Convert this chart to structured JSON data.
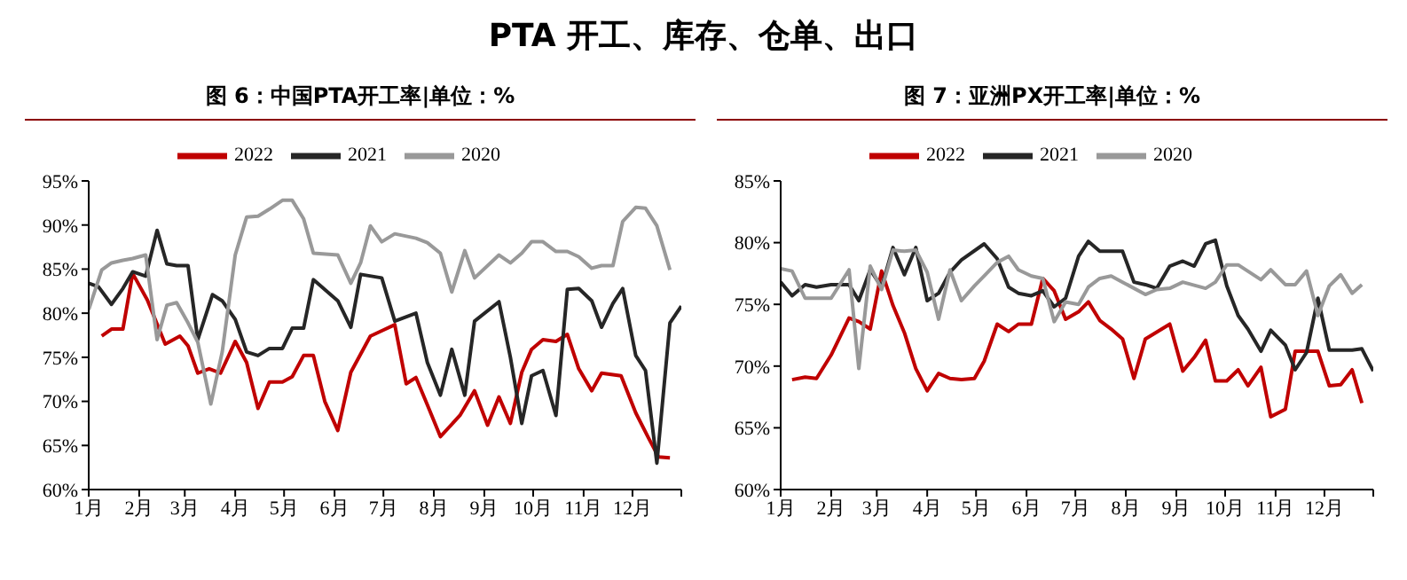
{
  "chart_data": [
    {
      "type": "line",
      "title": "PTA 开工、库存、仓单、出口",
      "subtitle": "图 6：中国PTA开工率|单位：%",
      "legend": "top",
      "grid": false,
      "xlim": [
        "--01-01",
        "--12-31"
      ],
      "xticks": [
        {
          "value": "--01-01",
          "label": "1月"
        },
        {
          "value": "--02-01",
          "label": "2月"
        },
        {
          "value": "--03-01",
          "label": "3月"
        },
        {
          "value": "--04-01",
          "label": "4月"
        },
        {
          "value": "--05-01",
          "label": "5月"
        },
        {
          "value": "--06-01",
          "label": "6月"
        },
        {
          "value": "--07-01",
          "label": "7月"
        },
        {
          "value": "--08-01",
          "label": "8月"
        },
        {
          "value": "--09-01",
          "label": "9月"
        },
        {
          "value": "--10-01",
          "label": "10月"
        },
        {
          "value": "--11-01",
          "label": "11月"
        },
        {
          "value": "--12-01",
          "label": "12月"
        },
        {
          "value": "--12-31",
          "label": null
        }
      ],
      "ylim": [
        60,
        95
      ],
      "yticks": [
        {
          "value": 60,
          "label": "60%"
        },
        {
          "value": 65,
          "label": "65%"
        },
        {
          "value": 70,
          "label": "70%"
        },
        {
          "value": 75,
          "label": "75%"
        },
        {
          "value": 80,
          "label": "80%"
        },
        {
          "value": 85,
          "label": "85%"
        },
        {
          "value": 90,
          "label": "90%"
        },
        {
          "value": 95,
          "label": "95%"
        }
      ],
      "series": [
        {
          "name": "2022",
          "color": "#c00000",
          "x": [
            "--01-09",
            "--01-15",
            "--01-22",
            "--01-28",
            "--02-06",
            "--02-17",
            "--02-26",
            "--03-03",
            "--03-09",
            "--03-16",
            "--03-23",
            "--04-01",
            "--04-08",
            "--04-15",
            "--04-22",
            "--04-30",
            "--05-06",
            "--05-13",
            "--05-19",
            "--05-26",
            "--06-03",
            "--06-11",
            "--06-23",
            "--06-30",
            "--07-08",
            "--07-15",
            "--07-21",
            "--07-28",
            "--08-05",
            "--08-17",
            "--08-26",
            "--09-03",
            "--09-10",
            "--09-17",
            "--09-24",
            "--09-30",
            "--10-07",
            "--10-15",
            "--10-22",
            "--10-29",
            "--11-06",
            "--11-12",
            "--11-24",
            "--12-03",
            "--12-11",
            "--12-17",
            "--12-24"
          ],
          "values": [
            77.4,
            78.2,
            78.2,
            84.5,
            81.5,
            76.5,
            77.4,
            76.3,
            73.2,
            73.7,
            73.2,
            76.8,
            74.4,
            69.2,
            72.2,
            72.2,
            72.8,
            75.2,
            75.2,
            70,
            66.7,
            73.3,
            77.4,
            78,
            78.7,
            72,
            72.7,
            69.6,
            66,
            68.4,
            71.2,
            67.3,
            70.5,
            67.5,
            73.3,
            75.9,
            77,
            76.8,
            77.6,
            73.7,
            71.2,
            73.2,
            72.9,
            68.7,
            65.8,
            63.7,
            63.6
          ]
        },
        {
          "name": "2021",
          "color": "#262626",
          "x": [
            "--01-01",
            "--01-07",
            "--01-15",
            "--01-22",
            "--01-28",
            "--02-05",
            "--02-12",
            "--02-18",
            "--02-24",
            "--03-03",
            "--03-09",
            "--03-18",
            "--03-24",
            "--04-01",
            "--04-08",
            "--04-15",
            "--04-22",
            "--04-30",
            "--05-06",
            "--05-13",
            "--05-19",
            "--06-03",
            "--06-11",
            "--06-17",
            "--06-30",
            "--07-08",
            "--07-21",
            "--07-28",
            "--08-05",
            "--08-12",
            "--08-20",
            "--08-26",
            "--09-10",
            "--09-17",
            "--09-24",
            "--09-30",
            "--10-07",
            "--10-15",
            "--10-22",
            "--10-29",
            "--11-06",
            "--11-12",
            "--11-19",
            "--11-25",
            "--12-03",
            "--12-09",
            "--12-16",
            "--12-24",
            "--12-31"
          ],
          "values": [
            83.4,
            83,
            81,
            82.8,
            84.7,
            84.2,
            89.4,
            85.6,
            85.4,
            85.4,
            77,
            82.1,
            81.4,
            79.3,
            75.6,
            75.2,
            76,
            76,
            78.3,
            78.3,
            83.8,
            81.4,
            78.4,
            84.4,
            84,
            79.1,
            80,
            74.4,
            70.7,
            75.9,
            70.7,
            79.1,
            81.3,
            75,
            67.5,
            72.9,
            73.5,
            68.4,
            82.7,
            82.8,
            81.4,
            78.4,
            81.1,
            82.8,
            75.2,
            73.5,
            63,
            78.9,
            80.8
          ]
        },
        {
          "name": "2020",
          "color": "#999999",
          "x": [
            "--01-01",
            "--01-09",
            "--01-15",
            "--01-22",
            "--01-28",
            "--02-05",
            "--02-12",
            "--02-18",
            "--02-24",
            "--03-03",
            "--03-09",
            "--03-17",
            "--03-24",
            "--04-01",
            "--04-08",
            "--04-15",
            "--04-22",
            "--04-30",
            "--05-06",
            "--05-13",
            "--05-19",
            "--06-03",
            "--06-11",
            "--06-17",
            "--06-23",
            "--06-30",
            "--07-08",
            "--07-21",
            "--07-28",
            "--08-05",
            "--08-12",
            "--08-20",
            "--08-26",
            "--09-10",
            "--09-17",
            "--09-24",
            "--09-30",
            "--10-07",
            "--10-15",
            "--10-22",
            "--10-29",
            "--11-06",
            "--11-12",
            "--11-19",
            "--11-25",
            "--12-03",
            "--12-09",
            "--12-16",
            "--12-24"
          ],
          "values": [
            80.4,
            84.9,
            85.7,
            86,
            86.2,
            86.6,
            77,
            80.9,
            81.2,
            78.9,
            76.7,
            69.7,
            75.6,
            86.6,
            90.9,
            91,
            91.8,
            92.8,
            92.8,
            90.7,
            86.8,
            86.6,
            83.4,
            85.7,
            89.9,
            88.1,
            89,
            88.5,
            88,
            86.8,
            82.4,
            87.1,
            84,
            86.6,
            85.7,
            86.8,
            88.1,
            88.1,
            87,
            87,
            86.4,
            85.1,
            85.4,
            85.4,
            90.4,
            92,
            91.9,
            89.9,
            84.9
          ]
        }
      ]
    },
    {
      "type": "line",
      "subtitle": "图 7：亚洲PX开工率|单位：%",
      "legend": "top",
      "grid": false,
      "xlim": [
        "--01-01",
        "--12-31"
      ],
      "xticks": [
        {
          "value": "--01-01",
          "label": "1月"
        },
        {
          "value": "--02-01",
          "label": "2月"
        },
        {
          "value": "--03-01",
          "label": "3月"
        },
        {
          "value": "--04-01",
          "label": "4月"
        },
        {
          "value": "--05-01",
          "label": "5月"
        },
        {
          "value": "--06-01",
          "label": "6月"
        },
        {
          "value": "--07-01",
          "label": "7月"
        },
        {
          "value": "--08-01",
          "label": "8月"
        },
        {
          "value": "--09-01",
          "label": "9月"
        },
        {
          "value": "--10-01",
          "label": "10月"
        },
        {
          "value": "--11-01",
          "label": "11月"
        },
        {
          "value": "--12-01",
          "label": "12月"
        },
        {
          "value": "--12-31",
          "label": null
        }
      ],
      "ylim": [
        60,
        85
      ],
      "yticks": [
        {
          "value": 60,
          "label": "60%"
        },
        {
          "value": 65,
          "label": "65%"
        },
        {
          "value": 70,
          "label": "70%"
        },
        {
          "value": 75,
          "label": "75%"
        },
        {
          "value": 80,
          "label": "80%"
        },
        {
          "value": 85,
          "label": "85%"
        }
      ],
      "series": [
        {
          "name": "2022",
          "color": "#c00000",
          "x": [
            "--01-08",
            "--01-16",
            "--01-23",
            "--02-01",
            "--02-12",
            "--02-18",
            "--02-25",
            "--03-04",
            "--03-11",
            "--03-18",
            "--03-25",
            "--04-01",
            "--04-08",
            "--04-15",
            "--04-22",
            "--04-30",
            "--05-06",
            "--05-14",
            "--05-21",
            "--05-27",
            "--06-04",
            "--06-11",
            "--06-18",
            "--06-25",
            "--07-03",
            "--07-09",
            "--07-16",
            "--07-23",
            "--07-30",
            "--08-06",
            "--08-13",
            "--08-28",
            "--09-05",
            "--09-12",
            "--09-19",
            "--09-25",
            "--10-02",
            "--10-09",
            "--10-15",
            "--10-23",
            "--10-29",
            "--11-07",
            "--11-13",
            "--11-27",
            "--12-04",
            "--12-11",
            "--12-18",
            "--12-24"
          ],
          "values": [
            68.9,
            69.1,
            69,
            70.9,
            73.9,
            73.6,
            73,
            77.7,
            74.9,
            72.7,
            69.8,
            68,
            69.4,
            69,
            68.9,
            69,
            70.4,
            73.4,
            72.8,
            73.4,
            73.4,
            77.1,
            76.1,
            73.8,
            74.4,
            75.2,
            73.7,
            73,
            72.2,
            69,
            72.2,
            73.4,
            69.6,
            70.7,
            72.1,
            68.8,
            68.8,
            69.7,
            68.4,
            69.9,
            65.9,
            66.5,
            71.2,
            71.2,
            68.4,
            68.5,
            69.7,
            67
          ]
        },
        {
          "name": "2021",
          "color": "#262626",
          "x": [
            "--01-01",
            "--01-08",
            "--01-16",
            "--01-23",
            "--02-01",
            "--02-12",
            "--02-18",
            "--02-25",
            "--03-04",
            "--03-11",
            "--03-18",
            "--03-25",
            "--04-01",
            "--04-08",
            "--04-15",
            "--04-22",
            "--05-06",
            "--05-14",
            "--05-21",
            "--05-27",
            "--06-04",
            "--06-11",
            "--06-18",
            "--06-25",
            "--07-03",
            "--07-09",
            "--07-16",
            "--07-30",
            "--08-06",
            "--08-13",
            "--08-20",
            "--08-28",
            "--09-05",
            "--09-12",
            "--09-19",
            "--09-25",
            "--10-02",
            "--10-09",
            "--10-15",
            "--10-23",
            "--10-29",
            "--11-07",
            "--11-13",
            "--11-20",
            "--11-27",
            "--12-04",
            "--12-18",
            "--12-24",
            "--12-31"
          ],
          "values": [
            76.8,
            75.7,
            76.6,
            76.4,
            76.6,
            76.6,
            75.3,
            77.8,
            76.4,
            79.6,
            77.4,
            79.6,
            75.3,
            75.9,
            77.6,
            78.6,
            79.9,
            78.7,
            76.4,
            75.9,
            75.7,
            76.1,
            74.8,
            75.5,
            78.9,
            80.1,
            79.3,
            79.3,
            76.8,
            76.6,
            76.3,
            78.1,
            78.5,
            78.1,
            79.9,
            80.2,
            76.5,
            74.1,
            73,
            71.2,
            72.9,
            71.7,
            69.7,
            71.1,
            75.5,
            71.3,
            71.3,
            71.4,
            69.6
          ]
        },
        {
          "name": "2020",
          "color": "#999999",
          "x": [
            "--01-01",
            "--01-08",
            "--01-16",
            "--02-01",
            "--02-12",
            "--02-18",
            "--02-25",
            "--03-04",
            "--03-11",
            "--03-18",
            "--03-25",
            "--04-01",
            "--04-08",
            "--04-15",
            "--04-22",
            "--04-30",
            "--05-06",
            "--05-14",
            "--05-21",
            "--05-27",
            "--06-04",
            "--06-11",
            "--06-18",
            "--06-25",
            "--07-03",
            "--07-09",
            "--07-16",
            "--07-23",
            "--07-30",
            "--08-13",
            "--08-20",
            "--08-28",
            "--09-05",
            "--09-19",
            "--09-25",
            "--10-02",
            "--10-09",
            "--10-23",
            "--10-29",
            "--11-07",
            "--11-13",
            "--11-20",
            "--11-27",
            "--12-04",
            "--12-11",
            "--12-18",
            "--12-24"
          ],
          "values": [
            77.9,
            77.7,
            75.5,
            75.5,
            77.8,
            69.8,
            78.1,
            76.2,
            79.4,
            79.3,
            79.4,
            77.6,
            73.8,
            77.8,
            75.3,
            76.5,
            77.3,
            78.4,
            78.9,
            77.8,
            77.3,
            77.1,
            73.6,
            75.2,
            75,
            76.4,
            77.1,
            77.3,
            76.8,
            75.8,
            76.2,
            76.3,
            76.8,
            76.3,
            76.8,
            78.2,
            78.2,
            77,
            77.8,
            76.6,
            76.6,
            77.7,
            74.1,
            76.5,
            77.4,
            75.9,
            76.6
          ]
        }
      ]
    }
  ]
}
